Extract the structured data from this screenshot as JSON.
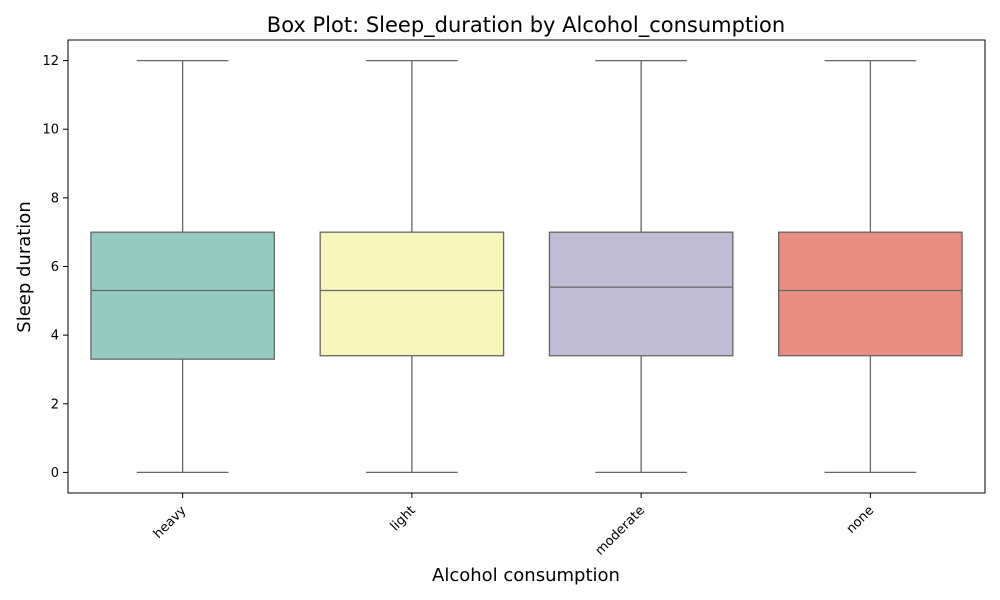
{
  "chart_data": {
    "type": "box",
    "title": "Box Plot: Sleep_duration by Alcohol_consumption",
    "xlabel": "Alcohol consumption",
    "ylabel": "Sleep duration",
    "ylim": [
      -0.6,
      12.6
    ],
    "yticks": [
      0,
      2,
      4,
      6,
      8,
      10,
      12
    ],
    "categories": [
      "heavy",
      "light",
      "moderate",
      "none"
    ],
    "boxes": [
      {
        "category": "heavy",
        "min": 0,
        "q1": 3.3,
        "median": 5.3,
        "q3": 7.0,
        "max": 12,
        "color": "#96cac0"
      },
      {
        "category": "light",
        "min": 0,
        "q1": 3.4,
        "median": 5.3,
        "q3": 7.0,
        "max": 12,
        "color": "#f6f6bc"
      },
      {
        "category": "moderate",
        "min": 0,
        "q1": 3.4,
        "median": 5.4,
        "q3": 7.0,
        "max": 12,
        "color": "#c0bcd6"
      },
      {
        "category": "none",
        "min": 0,
        "q1": 3.4,
        "median": 5.3,
        "q3": 7.0,
        "max": 12,
        "color": "#e98e83"
      }
    ],
    "grid": false,
    "legend": "none"
  }
}
